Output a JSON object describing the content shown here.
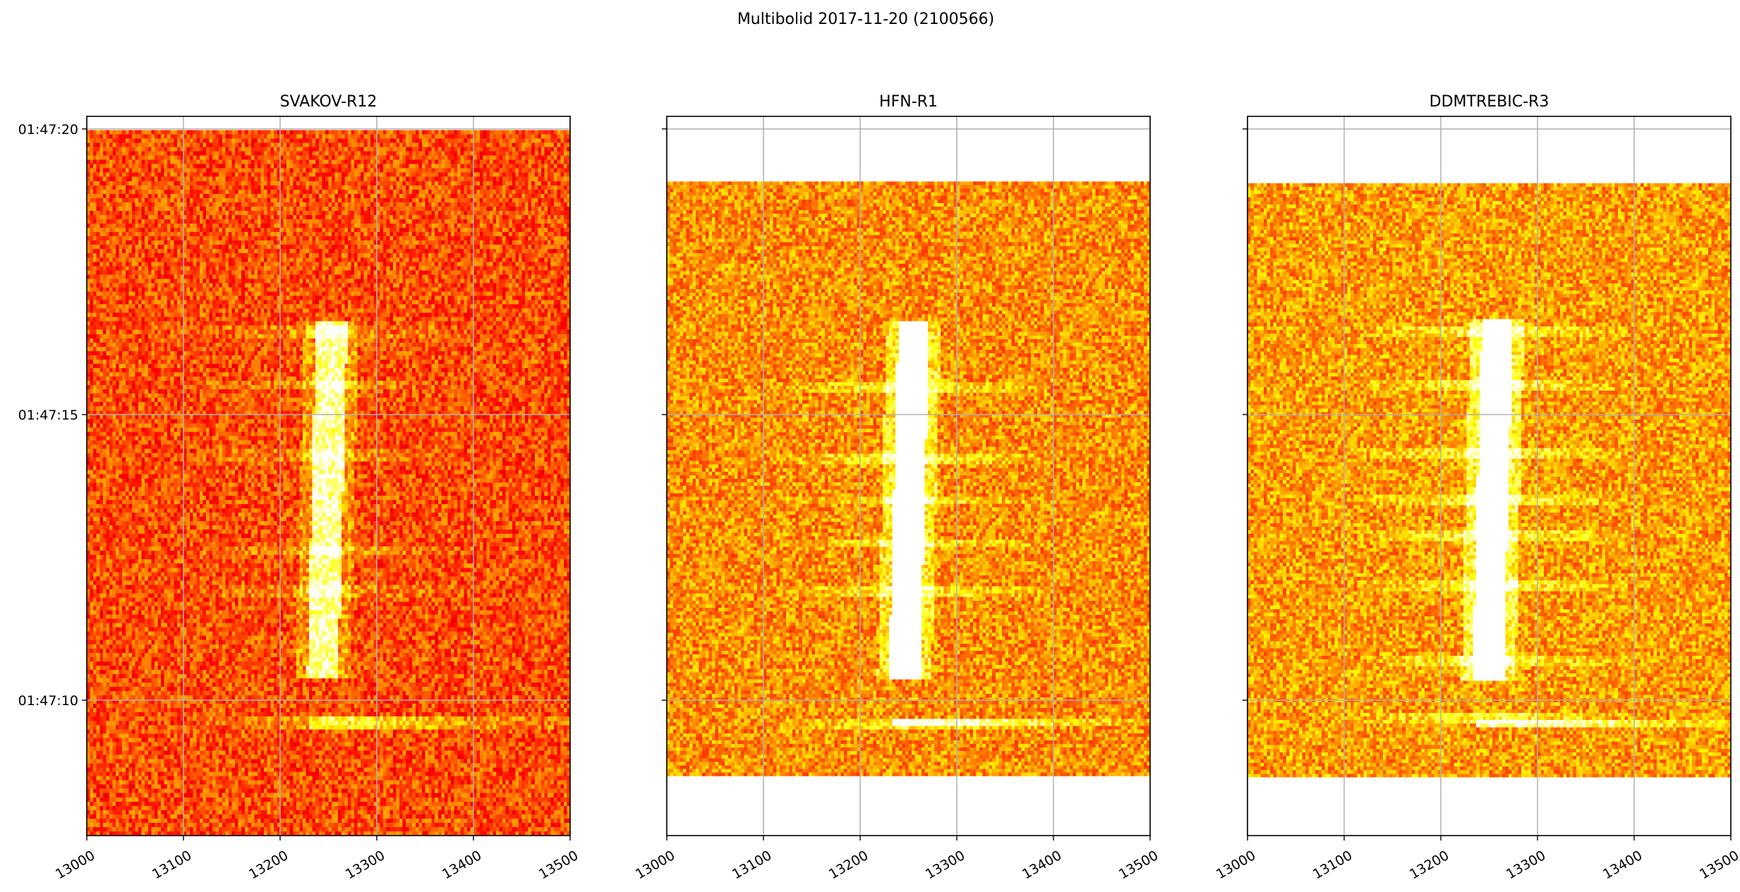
{
  "figure": {
    "suptitle": "Multibolid 2017-11-20 (2100566)"
  },
  "colors": {
    "background": "#ffffff",
    "grid": "#b0b0b0",
    "axis": "#000000",
    "colormap": "hot"
  },
  "chart_data": [
    {
      "type": "heatmap",
      "title": "SVAKOV-R12",
      "xlabel": "",
      "ylabel": "",
      "xlim": [
        13000,
        13500
      ],
      "x_ticks": [
        13000,
        13100,
        13200,
        13300,
        13400,
        13500
      ],
      "y_tick_values": [
        10,
        15,
        20
      ],
      "y_tick_labels": [
        "01:47:10",
        "01:47:15",
        "01:47:20"
      ],
      "y_tick_labels_visible": true,
      "ylim_seconds": [
        7.63,
        20.22
      ],
      "data_extent_seconds": [
        7.63,
        19.98
      ],
      "grid": true,
      "meteor": {
        "center_hz": 13250,
        "time_start_s": 10.35,
        "time_end_s": 16.65,
        "brightness": 0.55
      },
      "bands": [
        16.45,
        15.5,
        14.3,
        12.6,
        11.9,
        9.6
      ],
      "background_level": 0.48
    },
    {
      "type": "heatmap",
      "title": "HFN-R1",
      "xlabel": "",
      "ylabel": "",
      "xlim": [
        13000,
        13500
      ],
      "x_ticks": [
        13000,
        13100,
        13200,
        13300,
        13400,
        13500
      ],
      "y_tick_values": [
        10,
        15,
        20
      ],
      "y_tick_labels": [
        "01:47:10",
        "01:47:15",
        "01:47:20"
      ],
      "y_tick_labels_visible": false,
      "ylim_seconds": [
        7.63,
        20.22
      ],
      "data_extent_seconds": [
        8.67,
        19.08
      ],
      "grid": true,
      "meteor": {
        "center_hz": 13252,
        "time_start_s": 10.35,
        "time_end_s": 16.65,
        "brightness": 0.85
      },
      "bands": [
        15.5,
        14.2,
        13.5,
        12.75,
        11.9,
        9.6
      ],
      "background_level": 0.58
    },
    {
      "type": "heatmap",
      "title": "DDMTREBIC-R3",
      "xlabel": "",
      "ylabel": "",
      "xlim": [
        13000,
        13500
      ],
      "x_ticks": [
        13000,
        13100,
        13200,
        13300,
        13400,
        13500
      ],
      "y_tick_values": [
        10,
        15,
        20
      ],
      "y_tick_labels": [
        "01:47:10",
        "01:47:15",
        "01:47:20"
      ],
      "y_tick_labels_visible": false,
      "ylim_seconds": [
        7.63,
        20.22
      ],
      "data_extent_seconds": [
        8.65,
        19.05
      ],
      "grid": true,
      "meteor": {
        "center_hz": 13255,
        "time_start_s": 10.35,
        "time_end_s": 16.65,
        "brightness": 0.95
      },
      "bands": [
        16.45,
        15.5,
        14.3,
        13.5,
        12.9,
        12.0,
        10.7,
        9.7
      ],
      "background_level": 0.6
    }
  ]
}
